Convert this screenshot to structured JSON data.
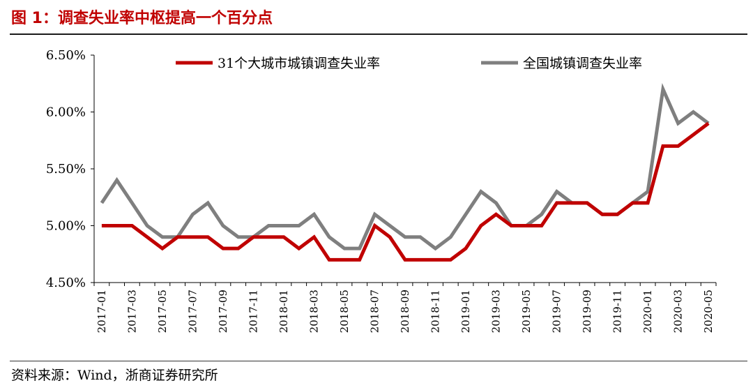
{
  "figure": {
    "title": "图 1：调查失业率中枢提高一个百分点",
    "source": "资料来源：Wind，浙商证券研究所"
  },
  "colors": {
    "title": "#c00000",
    "series_31_cities": "#c00000",
    "series_national": "#7f7f7f"
  },
  "chart_data": {
    "type": "line",
    "ylim": [
      4.5,
      6.5
    ],
    "yticks": [
      "4.50%",
      "5.00%",
      "5.50%",
      "6.00%",
      "6.50%"
    ],
    "ytick_values": [
      4.5,
      5.0,
      5.5,
      6.0,
      6.5
    ],
    "grid": false,
    "legend_position": "top",
    "x": [
      "2017-01",
      "2017-02",
      "2017-03",
      "2017-04",
      "2017-05",
      "2017-06",
      "2017-07",
      "2017-08",
      "2017-09",
      "2017-10",
      "2017-11",
      "2017-12",
      "2018-01",
      "2018-02",
      "2018-03",
      "2018-04",
      "2018-05",
      "2018-06",
      "2018-07",
      "2018-08",
      "2018-09",
      "2018-10",
      "2018-11",
      "2018-12",
      "2019-01",
      "2019-02",
      "2019-03",
      "2019-04",
      "2019-05",
      "2019-06",
      "2019-07",
      "2019-08",
      "2019-09",
      "2019-10",
      "2019-11",
      "2019-12",
      "2020-01",
      "2020-02",
      "2020-03",
      "2020-04",
      "2020-05"
    ],
    "xtick_labels": [
      "2017-01",
      "2017-03",
      "2017-05",
      "2017-07",
      "2017-09",
      "2017-11",
      "2018-01",
      "2018-03",
      "2018-05",
      "2018-07",
      "2018-09",
      "2018-11",
      "2019-01",
      "2019-03",
      "2019-05",
      "2019-07",
      "2019-09",
      "2019-11",
      "2020-01",
      "2020-03",
      "2020-05"
    ],
    "series": [
      {
        "name": "31个大城市城镇调查失业率",
        "values": [
          5.0,
          5.0,
          5.0,
          4.9,
          4.8,
          4.9,
          4.9,
          4.9,
          4.8,
          4.8,
          4.9,
          4.9,
          4.9,
          4.8,
          4.9,
          4.7,
          4.7,
          4.7,
          5.0,
          4.9,
          4.7,
          4.7,
          4.7,
          4.7,
          4.8,
          5.0,
          5.1,
          5.0,
          5.0,
          5.0,
          5.2,
          5.2,
          5.2,
          5.1,
          5.1,
          5.2,
          5.2,
          5.7,
          5.7,
          5.8,
          5.9
        ]
      },
      {
        "name": "全国城镇调查失业率",
        "values": [
          5.2,
          5.4,
          5.2,
          5.0,
          4.9,
          4.9,
          5.1,
          5.2,
          5.0,
          4.9,
          4.9,
          5.0,
          5.0,
          5.0,
          5.1,
          4.9,
          4.8,
          4.8,
          5.1,
          5.0,
          4.9,
          4.9,
          4.8,
          4.9,
          5.1,
          5.3,
          5.2,
          5.0,
          5.0,
          5.1,
          5.3,
          5.2,
          5.2,
          5.1,
          5.1,
          5.2,
          5.3,
          6.2,
          5.9,
          6.0,
          5.9
        ]
      }
    ]
  }
}
